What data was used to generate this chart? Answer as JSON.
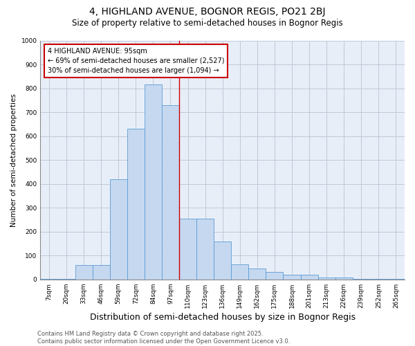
{
  "title": "4, HIGHLAND AVENUE, BOGNOR REGIS, PO21 2BJ",
  "subtitle": "Size of property relative to semi-detached houses in Bognor Regis",
  "xlabel": "Distribution of semi-detached houses by size in Bognor Regis",
  "ylabel": "Number of semi-detached properties",
  "categories": [
    "7sqm",
    "20sqm",
    "33sqm",
    "46sqm",
    "59sqm",
    "72sqm",
    "84sqm",
    "97sqm",
    "110sqm",
    "123sqm",
    "136sqm",
    "149sqm",
    "162sqm",
    "175sqm",
    "188sqm",
    "201sqm",
    "213sqm",
    "226sqm",
    "239sqm",
    "252sqm",
    "265sqm"
  ],
  "values": [
    3,
    3,
    60,
    60,
    420,
    630,
    815,
    730,
    255,
    255,
    160,
    62,
    45,
    32,
    20,
    20,
    8,
    8,
    3,
    3,
    3
  ],
  "bar_color": "#c5d8f0",
  "bar_edge_color": "#5b9bd5",
  "grid_color": "#c0c8d8",
  "background_color": "#e8eef8",
  "red_line_x": 7.5,
  "annotation_text": "4 HIGHLAND AVENUE: 95sqm\n← 69% of semi-detached houses are smaller (2,527)\n30% of semi-detached houses are larger (1,094) →",
  "annotation_box_color": "#ffffff",
  "annotation_border_color": "#cc0000",
  "ylim": [
    0,
    1000
  ],
  "yticks": [
    0,
    100,
    200,
    300,
    400,
    500,
    600,
    700,
    800,
    900,
    1000
  ],
  "footer_line1": "Contains HM Land Registry data © Crown copyright and database right 2025.",
  "footer_line2": "Contains public sector information licensed under the Open Government Licence v3.0.",
  "title_fontsize": 10,
  "subtitle_fontsize": 8.5,
  "xlabel_fontsize": 9,
  "ylabel_fontsize": 7.5,
  "tick_fontsize": 6.5,
  "annotation_fontsize": 7,
  "footer_fontsize": 6
}
